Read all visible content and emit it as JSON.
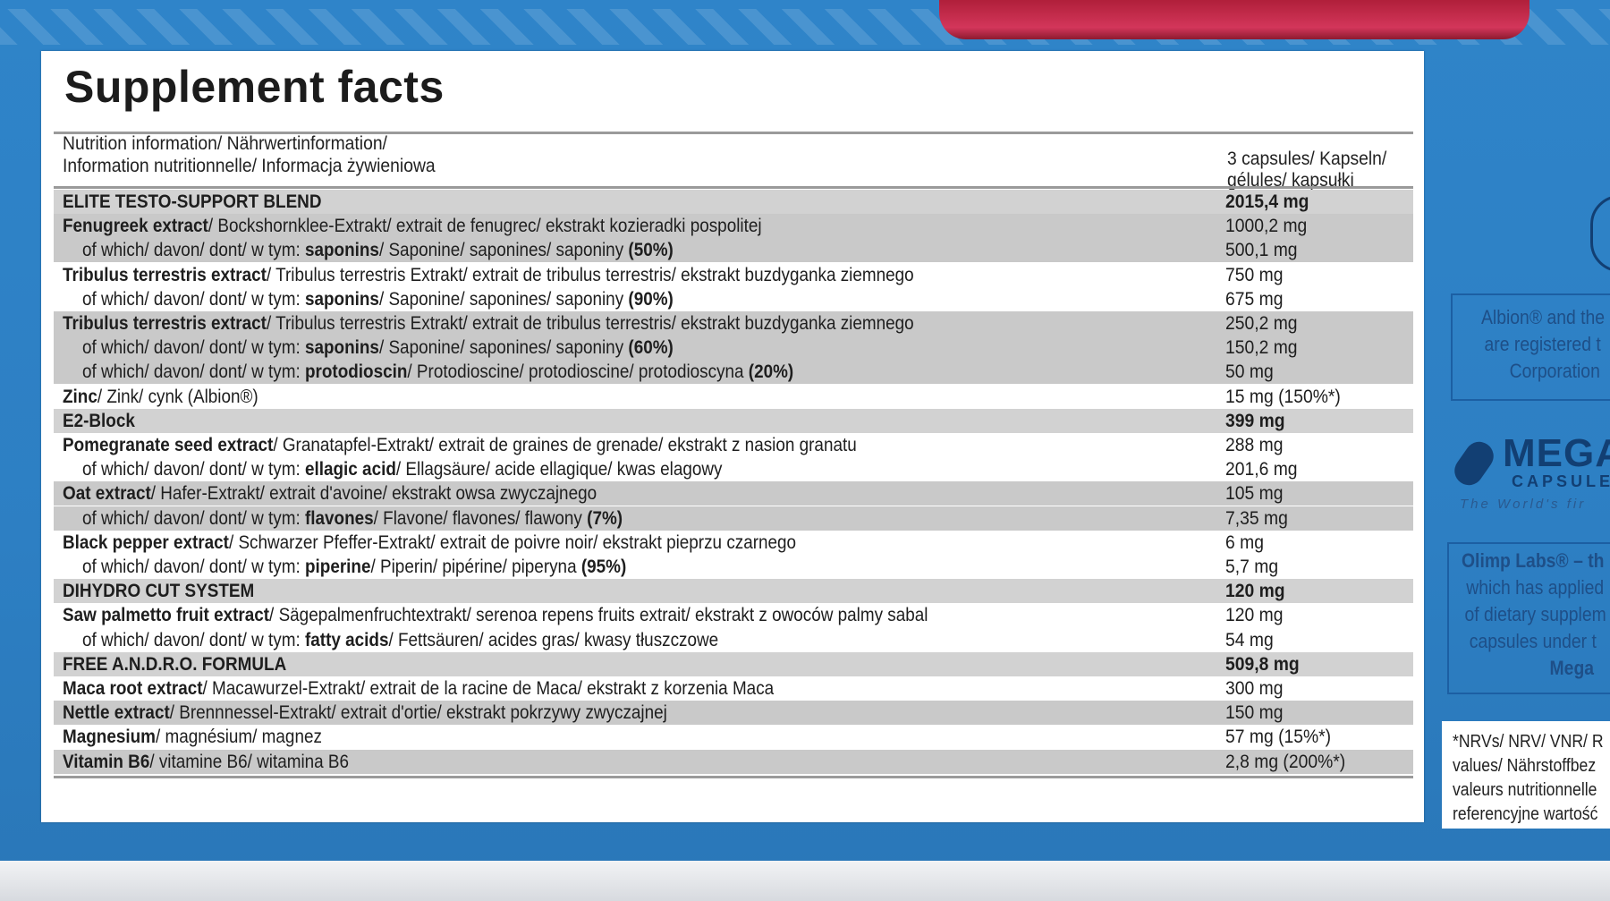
{
  "title": "Supplement facts",
  "header": {
    "left_line1": "Nutrition information/ Nährwertinformation/",
    "left_line2": "Information nutritionnelle/ Informacja żywieniowa",
    "right_line1": "3 capsules/ Kapseln/",
    "right_line2": "gélules/ kapsułki"
  },
  "rows": [
    {
      "style": "sect",
      "labelBold": "ELITE TESTO-SUPPORT BLEND",
      "labelRest": "",
      "valueBold": true,
      "value": "2015,4 mg"
    },
    {
      "style": "gray",
      "labelBold": "Fenugreek extract",
      "labelRest": "/ Bockshornklee-Extrakt/ extrait de fenugrec/ ekstrakt kozieradki pospolitej",
      "value": "1000,2 mg"
    },
    {
      "style": "gray",
      "sub": true,
      "labelPre": "of which/ davon/ dont/ w tym: ",
      "labelBold": "saponins",
      "labelRest": "/ Saponine/ saponines/ saponiny ",
      "labelTail": "(50%)",
      "value": "500,1 mg"
    },
    {
      "style": "white",
      "labelBold": "Tribulus terrestris extract",
      "labelRest": "/ Tribulus terrestris Extrakt/ extrait de tribulus terrestris/ ekstrakt buzdyganka ziemnego",
      "value": "750 mg"
    },
    {
      "style": "white",
      "sub": true,
      "labelPre": "of which/ davon/ dont/ w tym: ",
      "labelBold": "saponins",
      "labelRest": "/ Saponine/ saponines/ saponiny ",
      "labelTail": "(90%)",
      "value": "675 mg"
    },
    {
      "style": "gray",
      "labelBold": "Tribulus terrestris extract",
      "labelRest": "/ Tribulus terrestris Extrakt/ extrait de tribulus terrestris/ ekstrakt buzdyganka ziemnego",
      "value": "250,2 mg"
    },
    {
      "style": "gray",
      "sub": true,
      "labelPre": "of which/ davon/ dont/ w tym: ",
      "labelBold": "saponins",
      "labelRest": "/ Saponine/ saponines/ saponiny ",
      "labelTail": "(60%)",
      "value": "150,2 mg"
    },
    {
      "style": "gray",
      "sub": true,
      "labelPre": "of which/ davon/ dont/ w tym: ",
      "labelBold": "protodioscin",
      "labelRest": "/ Protodioscine/ protodioscine/ protodioscyna ",
      "labelTail": "(20%)",
      "value": "50 mg"
    },
    {
      "style": "white",
      "labelBold": "Zinc",
      "labelRest": "/ Zink/ cynk (Albion®)",
      "value": "15 mg (150%*)"
    },
    {
      "style": "sect",
      "labelBold": "E2-Block",
      "labelRest": "",
      "valueBold": true,
      "value": "399 mg"
    },
    {
      "style": "white",
      "labelBold": "Pomegranate seed extract",
      "labelRest": "/ Granatapfel-Extrakt/ extrait de graines de grenade/ ekstrakt z nasion granatu",
      "value": "288 mg"
    },
    {
      "style": "white",
      "sub": true,
      "labelPre": "of which/ davon/ dont/ w tym: ",
      "labelBold": "ellagic acid",
      "labelRest": "/ Ellagsäure/ acide ellagique/ kwas elagowy",
      "labelTail": "",
      "value": "201,6 mg"
    },
    {
      "style": "gray",
      "labelBold": "Oat extract",
      "labelRest": "/ Hafer-Extrakt/ extrait d'avoine/ ekstrakt owsa zwyczajnego",
      "value": "105 mg"
    },
    {
      "style": "gray",
      "sub": true,
      "labelPre": "of which/ davon/ dont/ w tym: ",
      "labelBold": "flavones",
      "labelRest": "/ Flavone/ flavones/ flawony ",
      "labelTail": "(7%)",
      "value": "7,35 mg"
    },
    {
      "style": "white",
      "labelBold": "Black pepper extract",
      "labelRest": "/ Schwarzer Pfeffer-Extrakt/ extrait de poivre noir/ ekstrakt pieprzu czarnego",
      "value": "6 mg"
    },
    {
      "style": "white",
      "sub": true,
      "labelPre": "of which/ davon/ dont/ w tym: ",
      "labelBold": "piperine",
      "labelRest": "/ Piperin/ pipérine/ piperyna ",
      "labelTail": "(95%)",
      "value": "5,7 mg"
    },
    {
      "style": "sect",
      "labelBold": "DIHYDRO CUT SYSTEM",
      "labelRest": "",
      "valueBold": true,
      "value": "120 mg"
    },
    {
      "style": "white",
      "labelBold": "Saw palmetto fruit extract",
      "labelRest": "/ Sägepalmenfruchtextrakt/ serenoa repens fruits extrait/ ekstrakt z owoców palmy sabal",
      "value": "120 mg"
    },
    {
      "style": "white",
      "sub": true,
      "labelPre": "of which/ davon/ dont/ w tym: ",
      "labelBold": "fatty acids",
      "labelRest": "/ Fettsäuren/ acides gras/ kwasy tłuszczowe",
      "labelTail": "",
      "value": "54 mg"
    },
    {
      "style": "sect",
      "labelBold": "FREE A.N.D.R.O. FORMULA",
      "labelRest": "",
      "valueBold": true,
      "value": "509,8 mg"
    },
    {
      "style": "white",
      "labelBold": "Maca root extract",
      "labelRest": "/ Macawurzel-Extrakt/ extrait de la racine de Maca/ ekstrakt z korzenia Maca",
      "value": "300 mg"
    },
    {
      "style": "gray",
      "labelBold": "Nettle extract",
      "labelRest": "/ Brennnessel-Extrakt/ extrait d'ortie/ ekstrakt pokrzywy zwyczajnej",
      "value": "150 mg"
    },
    {
      "style": "white",
      "labelBold": "Magnesium",
      "labelRest": "/ magnésium/ magnez",
      "value": "57 mg (15%*)"
    },
    {
      "style": "gray",
      "labelBold": "Vitamin B6",
      "labelRest": "/ vitamine B6/ witamina B6",
      "value": "2,8 mg (200%*)"
    }
  ],
  "side": {
    "albion_lines": [
      "Albion® and the",
      "are registered t",
      "Corporation"
    ],
    "mega_logo": "MEGA",
    "mega_sub": "CAPSULE",
    "mega_tag": "The World's fir",
    "olimp_lines": [
      "Olimp Labs® – th",
      "which has applied",
      "of dietary supplem",
      "capsules under t",
      "Mega"
    ],
    "nrv_lines": [
      "*NRVs/ NRV/ VNR/ R",
      "values/ Nährstoffbez",
      "valeurs nutritionnelle",
      "referencyjne wartość"
    ]
  },
  "colors": {
    "box_blue": "#2f84c9",
    "lid_red": "#c2284a",
    "row_gray": "#c9c9c9",
    "text": "#1e1e1e"
  }
}
